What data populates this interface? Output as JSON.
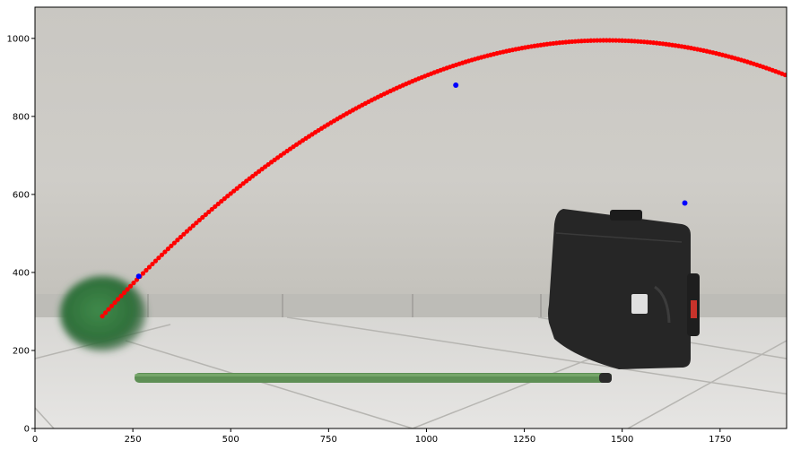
{
  "chart_data": {
    "type": "scatter",
    "title": "",
    "xlabel": "",
    "ylabel": "",
    "xlim": [
      0,
      1920
    ],
    "ylim": [
      0,
      1080
    ],
    "grid": false,
    "x_ticks": [
      0,
      250,
      500,
      750,
      1000,
      1250,
      1500,
      1750
    ],
    "y_ticks": [
      0,
      200,
      400,
      600,
      800,
      1000
    ],
    "background": "photo of a ball, a green stick and a black suitcase on a tiled floor against a white wall",
    "colors": {
      "trajectory": "#ff0000",
      "markers": "#0000ff"
    },
    "series": [
      {
        "kind": "fitted-curve",
        "color": "#ff0000",
        "x_start": 172,
        "x_end": 1920,
        "x_step": 8,
        "quadratic": {
          "vertex_x": 1460,
          "vertex_y": 995,
          "through": [
            172,
            288
          ]
        }
      },
      {
        "kind": "points",
        "color": "#0000ff",
        "points": [
          {
            "x": 265,
            "y": 390
          },
          {
            "x": 1075,
            "y": 880
          },
          {
            "x": 1660,
            "y": 578
          }
        ]
      }
    ]
  }
}
